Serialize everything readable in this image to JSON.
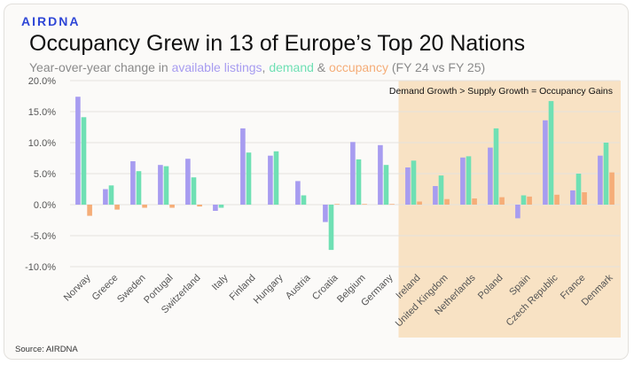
{
  "brand": "AIRDNA",
  "title": "Occupancy Grew in 13 of Europe’s Top 20 Nations",
  "subtitle": {
    "prefix": "Year-over-year change in ",
    "listings": "available listings",
    "sep1": ", ",
    "demand": "demand",
    "sep2": " & ",
    "occupancy": "occupancy",
    "suffix": " (FY 24 vs FY 25)"
  },
  "source": "Source: AIRDNA",
  "colors": {
    "listings": "#a79cf0",
    "demand": "#6fe0b4",
    "occupancy": "#f5ad78",
    "highlight": "#f8e2c4"
  },
  "chart_data": {
    "type": "bar",
    "title": "Occupancy Grew in 13 of Europe’s Top 20 Nations",
    "xlabel": "",
    "ylabel": "",
    "ylim": [
      -10,
      20
    ],
    "yticks": [
      20,
      15,
      10,
      5,
      0,
      -5,
      -10
    ],
    "ytick_labels": [
      "20.0%",
      "15.0%",
      "10.0%",
      "5.0%",
      "0.0%",
      "-5.0%",
      "-10.0%"
    ],
    "grid": true,
    "categories": [
      "Norway",
      "Greece",
      "Sweden",
      "Portugal",
      "Switzerland",
      "Italy",
      "Finland",
      "Hungary",
      "Austria",
      "Croatia",
      "Belgium",
      "Germany",
      "Ireland",
      "United Kingdom",
      "Netherlands",
      "Poland",
      "Spain",
      "Czech Republic",
      "France",
      "Denmark"
    ],
    "series": [
      {
        "name": "available listings",
        "values": [
          17.4,
          2.5,
          7.0,
          6.4,
          7.4,
          -1.0,
          12.3,
          7.9,
          3.8,
          -2.8,
          10.1,
          9.6,
          6.0,
          3.0,
          7.6,
          9.2,
          -2.2,
          13.6,
          2.3,
          7.9
        ]
      },
      {
        "name": "demand",
        "values": [
          14.1,
          3.1,
          5.4,
          6.2,
          4.4,
          -0.5,
          8.4,
          8.6,
          1.5,
          -7.3,
          7.3,
          6.4,
          7.1,
          4.7,
          7.8,
          12.3,
          1.5,
          16.7,
          5.0,
          10.0
        ]
      },
      {
        "name": "occupancy",
        "values": [
          -1.8,
          -0.8,
          -0.5,
          -0.5,
          -0.3,
          0.0,
          0.0,
          0.0,
          0.0,
          0.1,
          0.1,
          0.1,
          0.5,
          0.9,
          1.0,
          1.2,
          1.3,
          1.6,
          2.0,
          5.2
        ]
      }
    ],
    "highlight": {
      "from_category": "Ireland",
      "to_category": "Denmark",
      "label": "Demand Growth > Supply Growth = Occupancy Gains"
    }
  }
}
